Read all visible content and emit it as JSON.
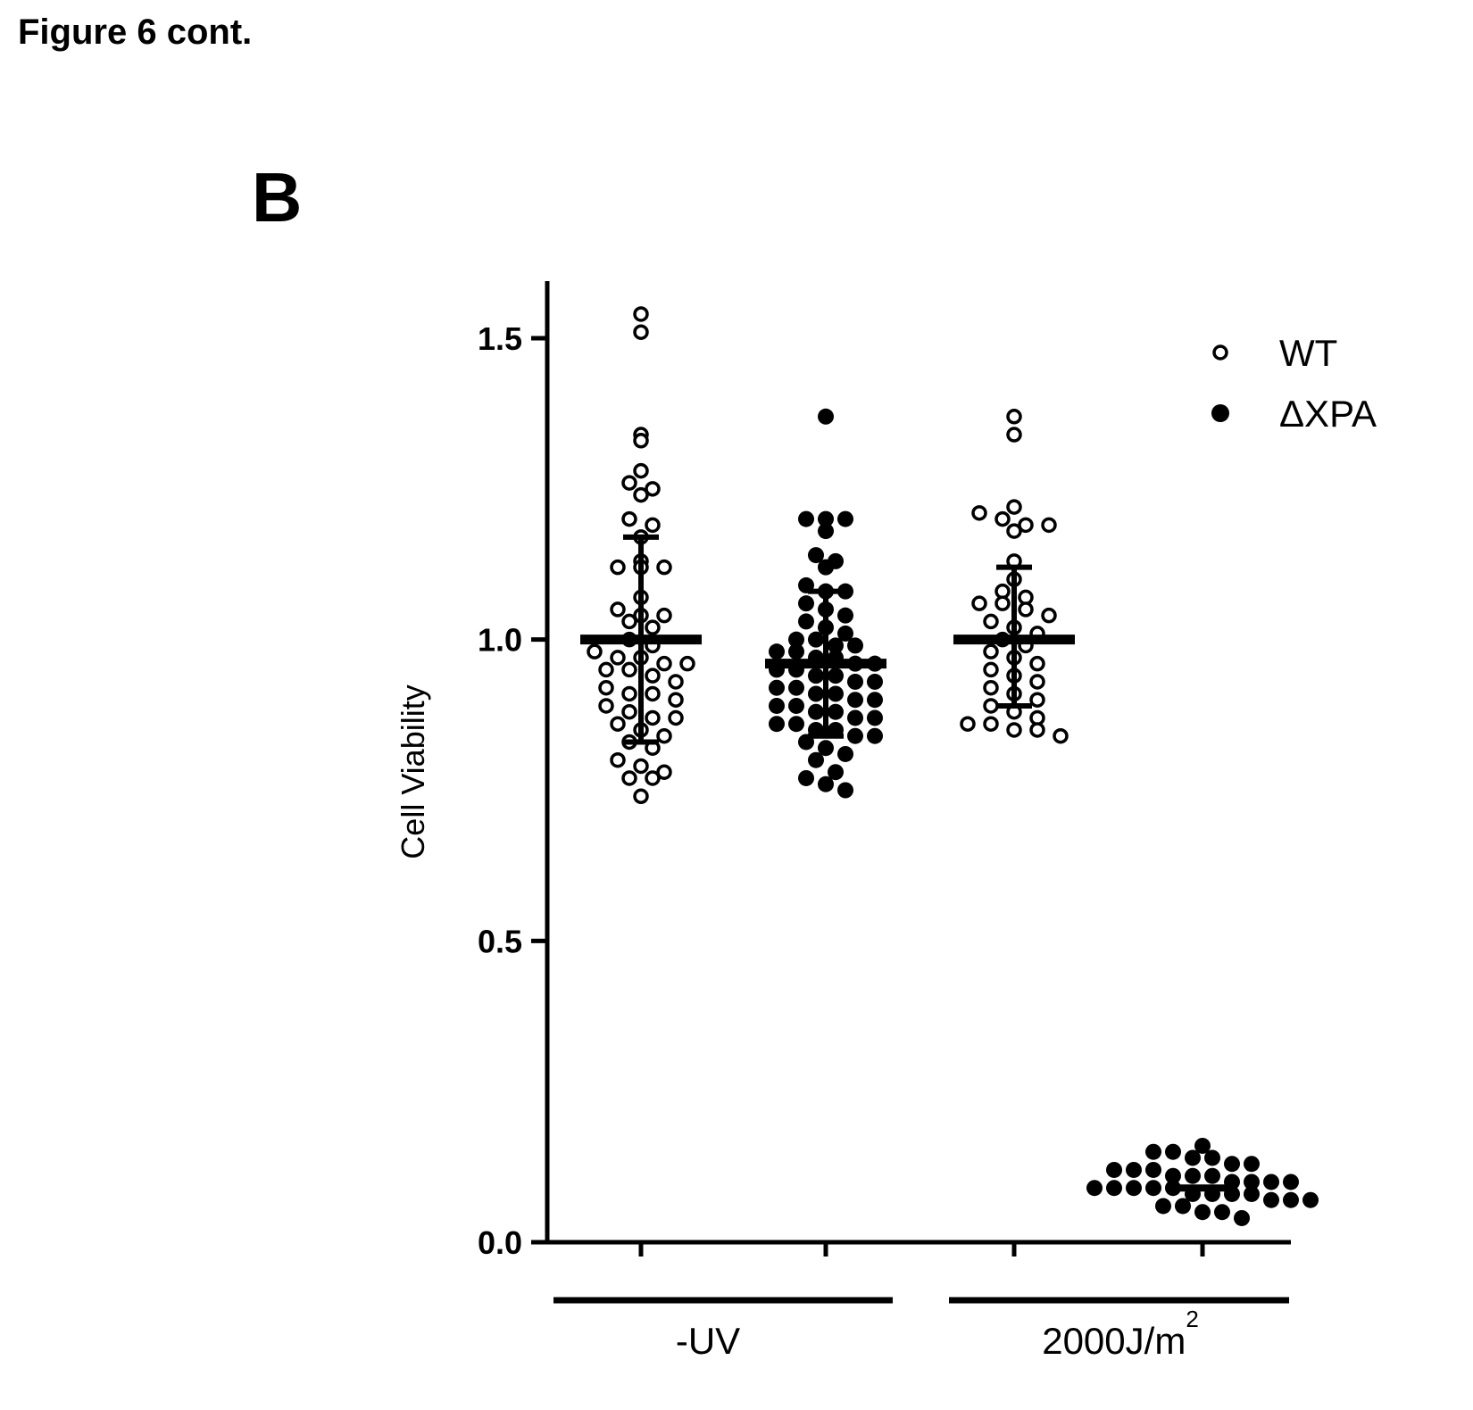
{
  "figure": {
    "caption": "Figure 6 cont.",
    "panel": "B"
  },
  "chart_data": {
    "type": "scatter",
    "ylabel": "Cell Viability",
    "ylim": [
      0,
      1.6
    ],
    "yticks": [
      0.0,
      0.5,
      1.0,
      1.5
    ],
    "ytick_labels": [
      "0.0",
      "0.5",
      "1.0",
      "1.5"
    ],
    "grid": false,
    "legend_position": "top-right",
    "legend": [
      {
        "label": "WT",
        "marker": "open-circle"
      },
      {
        "label": "ΔXPA",
        "marker": "filled-circle"
      }
    ],
    "groups": [
      {
        "label": "-UV",
        "columns": [
          0,
          1
        ]
      },
      {
        "label": "2000J/m",
        "superscript": "2",
        "columns": [
          2,
          3
        ]
      }
    ],
    "series": [
      {
        "name": "WT",
        "group": "-UV",
        "mean": 1.0,
        "sd_low": 0.83,
        "sd_high": 1.17,
        "values": [
          1.54,
          1.51,
          1.34,
          1.33,
          1.28,
          1.26,
          1.25,
          1.24,
          1.2,
          1.19,
          1.17,
          1.13,
          1.12,
          1.12,
          1.12,
          1.07,
          1.05,
          1.04,
          1.04,
          1.03,
          1.02,
          1.0,
          0.99,
          0.98,
          0.97,
          0.97,
          0.96,
          0.96,
          0.95,
          0.95,
          0.94,
          0.93,
          0.92,
          0.91,
          0.91,
          0.9,
          0.89,
          0.88,
          0.87,
          0.87,
          0.86,
          0.85,
          0.84,
          0.83,
          0.82,
          0.8,
          0.79,
          0.78,
          0.77,
          0.77,
          0.74
        ]
      },
      {
        "name": "ΔXPA",
        "group": "-UV",
        "mean": 0.96,
        "sd_low": 0.84,
        "sd_high": 1.08,
        "values": [
          1.37,
          1.2,
          1.2,
          1.2,
          1.18,
          1.14,
          1.13,
          1.12,
          1.09,
          1.08,
          1.08,
          1.06,
          1.05,
          1.04,
          1.03,
          1.02,
          1.01,
          1.0,
          1.0,
          0.99,
          0.99,
          0.98,
          0.98,
          0.97,
          0.97,
          0.96,
          0.96,
          0.95,
          0.95,
          0.94,
          0.94,
          0.93,
          0.93,
          0.92,
          0.92,
          0.91,
          0.91,
          0.9,
          0.9,
          0.89,
          0.89,
          0.88,
          0.88,
          0.87,
          0.87,
          0.86,
          0.86,
          0.85,
          0.85,
          0.84,
          0.84,
          0.83,
          0.82,
          0.81,
          0.8,
          0.78,
          0.77,
          0.76,
          0.75
        ]
      },
      {
        "name": "WT",
        "group": "2000J/m2",
        "mean": 1.0,
        "sd_low": 0.89,
        "sd_high": 1.12,
        "values": [
          1.37,
          1.34,
          1.22,
          1.21,
          1.2,
          1.19,
          1.19,
          1.18,
          1.13,
          1.1,
          1.08,
          1.07,
          1.06,
          1.06,
          1.05,
          1.04,
          1.03,
          1.02,
          1.01,
          1.0,
          0.99,
          0.98,
          0.97,
          0.96,
          0.95,
          0.94,
          0.93,
          0.92,
          0.91,
          0.9,
          0.89,
          0.88,
          0.87,
          0.86,
          0.86,
          0.85,
          0.85,
          0.84
        ]
      },
      {
        "name": "ΔXPA",
        "group": "2000J/m2",
        "mean": 0.09,
        "sd_low": 0.07,
        "sd_high": 0.11,
        "values": [
          0.16,
          0.15,
          0.15,
          0.14,
          0.14,
          0.13,
          0.13,
          0.12,
          0.12,
          0.12,
          0.11,
          0.11,
          0.11,
          0.1,
          0.1,
          0.1,
          0.1,
          0.09,
          0.09,
          0.09,
          0.09,
          0.09,
          0.08,
          0.08,
          0.08,
          0.08,
          0.07,
          0.07,
          0.07,
          0.06,
          0.06,
          0.05,
          0.05,
          0.04
        ]
      }
    ]
  }
}
